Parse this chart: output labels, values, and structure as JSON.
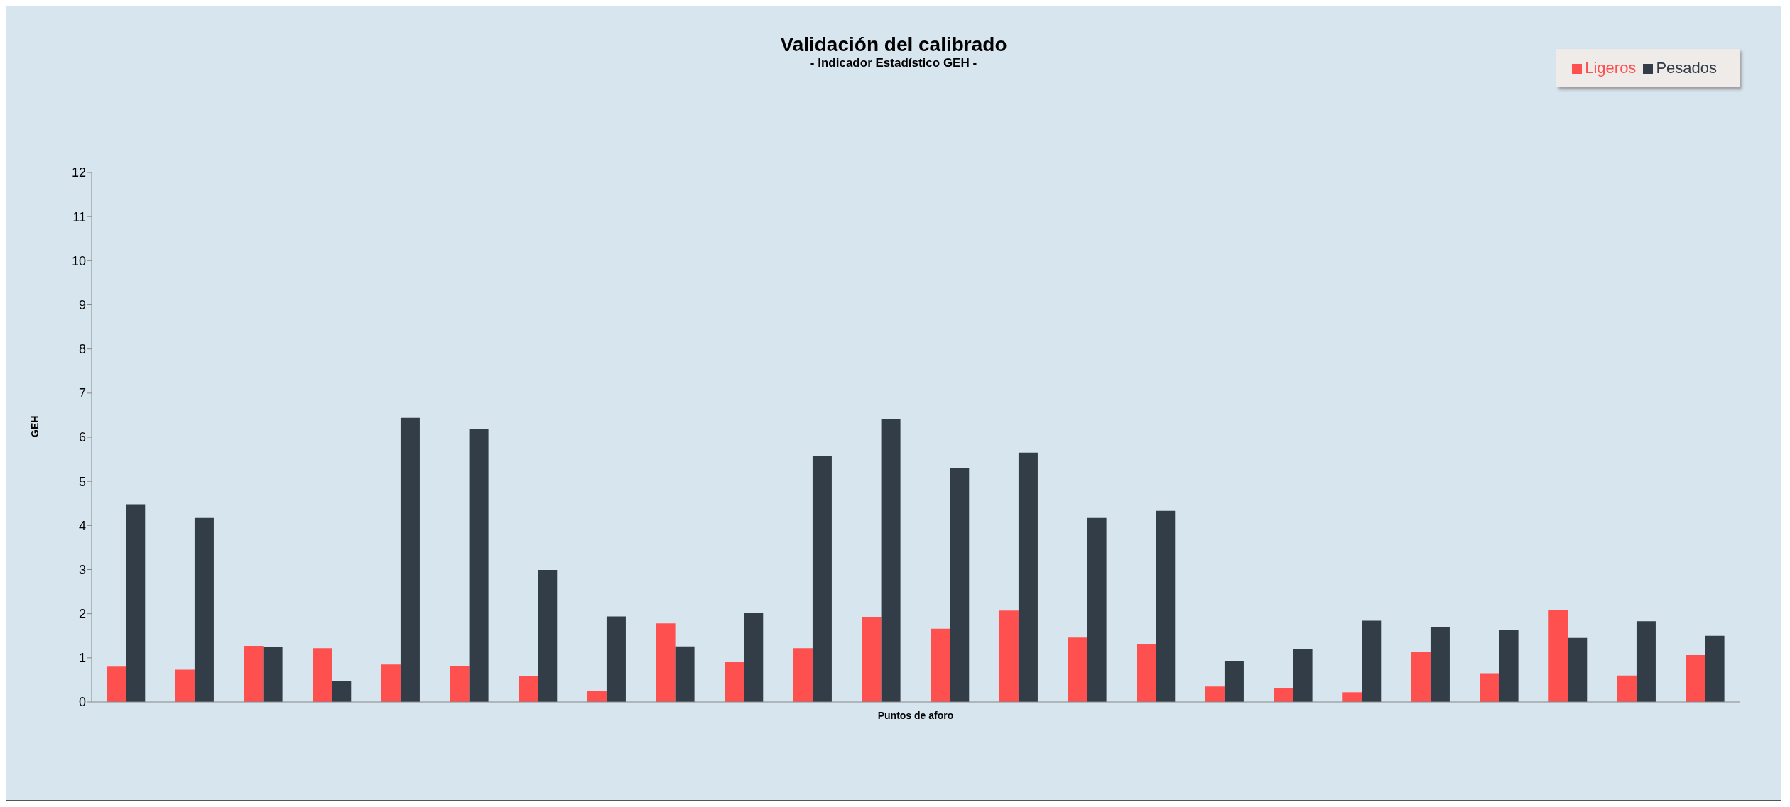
{
  "chart_data": {
    "type": "bar",
    "title": "Validación del calibrado",
    "subtitle": "- Indicador Estadístico  GEH -",
    "xlabel": "Puntos de aforo",
    "ylabel": "GEH",
    "categories": [
      null,
      null,
      null,
      null,
      null,
      null,
      null,
      null,
      null,
      null,
      null,
      null,
      null,
      null,
      null,
      null,
      null,
      null,
      null,
      null,
      null,
      null,
      null,
      null
    ],
    "series": [
      {
        "name": "Ligeros",
        "color": "#ff5050",
        "values": [
          0.8,
          0.73,
          1.27,
          1.22,
          0.85,
          0.82,
          0.58,
          0.25,
          1.78,
          0.9,
          1.22,
          1.92,
          1.66,
          2.07,
          1.46,
          1.31,
          0.35,
          0.32,
          0.22,
          1.13,
          0.65,
          2.09,
          0.6,
          1.06
        ]
      },
      {
        "name": "Pesados",
        "color": "#333d47",
        "values": [
          4.48,
          4.17,
          1.24,
          0.48,
          6.44,
          6.19,
          2.99,
          1.94,
          1.26,
          2.02,
          5.58,
          6.42,
          5.3,
          5.65,
          4.17,
          4.33,
          0.93,
          1.19,
          1.84,
          1.69,
          1.64,
          1.45,
          1.83,
          1.5
        ]
      }
    ],
    "ylim": [
      0,
      12
    ],
    "yticks": [
      0,
      1,
      2,
      3,
      4,
      5,
      6,
      7,
      8,
      9,
      10,
      11,
      12
    ],
    "grid": false,
    "legend": "top right"
  }
}
